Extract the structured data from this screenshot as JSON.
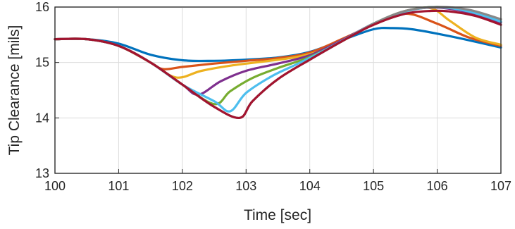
{
  "chart_data": {
    "type": "line",
    "title": "",
    "xlabel": "Time [sec]",
    "ylabel": "Tip Clearance [mils]",
    "xlim": [
      100,
      107
    ],
    "ylim": [
      13,
      16
    ],
    "xticks": [
      "100",
      "101",
      "102",
      "103",
      "104",
      "105",
      "106",
      "107"
    ],
    "yticks": [
      "13",
      "14",
      "15",
      "16"
    ],
    "grid": true,
    "legend": "none",
    "series": [
      {
        "color": "#0072BD",
        "x": [
          100,
          100.5,
          101,
          101.5,
          102,
          102.5,
          103,
          103.5,
          104,
          104.5,
          105,
          105.3,
          105.6,
          106,
          106.5,
          107
        ],
        "y": [
          15.42,
          15.42,
          15.34,
          15.14,
          15.04,
          15.03,
          15.05,
          15.09,
          15.19,
          15.4,
          15.6,
          15.62,
          15.6,
          15.52,
          15.4,
          15.27
        ]
      },
      {
        "color": "#D95319",
        "x": [
          100,
          100.5,
          101,
          101.5,
          101.7,
          102,
          102.5,
          103,
          103.5,
          104,
          104.5,
          105,
          105.5,
          106,
          106.5,
          107
        ],
        "y": [
          15.42,
          15.42,
          15.3,
          15.0,
          14.88,
          14.92,
          14.98,
          15.03,
          15.08,
          15.18,
          15.42,
          15.68,
          15.88,
          15.7,
          15.45,
          15.3
        ]
      },
      {
        "color": "#EDB120",
        "x": [
          100,
          100.5,
          101,
          101.5,
          101.9,
          102.3,
          102.8,
          103.3,
          103.8,
          104.2,
          104.6,
          105,
          105.5,
          105.9,
          106.2,
          106.6,
          107
        ],
        "y": [
          15.42,
          15.42,
          15.3,
          15.0,
          14.73,
          14.85,
          14.95,
          15.02,
          15.1,
          15.22,
          15.45,
          15.7,
          15.92,
          15.98,
          15.75,
          15.45,
          15.32
        ]
      },
      {
        "color": "#7E2F8E",
        "x": [
          100,
          100.5,
          101,
          101.5,
          102,
          102.25,
          102.6,
          103,
          103.5,
          104,
          104.5,
          105,
          105.5,
          106,
          106.5,
          107
        ],
        "y": [
          15.42,
          15.42,
          15.3,
          15.0,
          14.6,
          14.42,
          14.66,
          14.85,
          14.98,
          15.13,
          15.4,
          15.7,
          15.93,
          15.99,
          15.9,
          15.72
        ]
      },
      {
        "color": "#77AC30",
        "x": [
          100,
          100.5,
          101,
          101.5,
          102,
          102.5,
          102.75,
          103.1,
          103.5,
          104,
          104.5,
          105,
          105.5,
          106,
          106.5,
          107
        ],
        "y": [
          15.42,
          15.42,
          15.3,
          15.0,
          14.6,
          14.25,
          14.48,
          14.72,
          14.9,
          15.1,
          15.38,
          15.7,
          15.93,
          16.0,
          15.92,
          15.74
        ]
      },
      {
        "color": "#4DBEEE",
        "x": [
          100,
          100.5,
          101,
          101.5,
          102,
          102.5,
          102.75,
          103.0,
          103.4,
          103.8,
          104.2,
          104.6,
          105,
          105.5,
          106,
          106.5,
          107
        ],
        "y": [
          15.42,
          15.42,
          15.3,
          15.0,
          14.6,
          14.3,
          14.12,
          14.45,
          14.75,
          14.97,
          15.2,
          15.45,
          15.7,
          15.92,
          16.0,
          15.92,
          15.74
        ]
      },
      {
        "color": "#888888",
        "x": [
          100,
          100.5,
          101,
          101.5,
          102,
          102.5,
          102.9,
          103.1,
          103.5,
          104,
          104.5,
          105,
          105.5,
          106,
          106.5,
          107
        ],
        "y": [
          15.42,
          15.42,
          15.3,
          15.0,
          14.6,
          14.2,
          14.0,
          14.3,
          14.7,
          15.05,
          15.38,
          15.7,
          15.93,
          16.0,
          15.95,
          15.78
        ]
      },
      {
        "color": "#A2142F",
        "x": [
          100,
          100.5,
          101,
          101.5,
          102,
          102.5,
          102.9,
          103.1,
          103.5,
          104,
          104.5,
          105,
          105.5,
          105.9,
          106.2,
          106.6,
          107
        ],
        "y": [
          15.42,
          15.42,
          15.3,
          15.0,
          14.6,
          14.2,
          14.0,
          14.3,
          14.7,
          15.05,
          15.38,
          15.68,
          15.88,
          15.93,
          15.92,
          15.84,
          15.68
        ]
      }
    ]
  }
}
